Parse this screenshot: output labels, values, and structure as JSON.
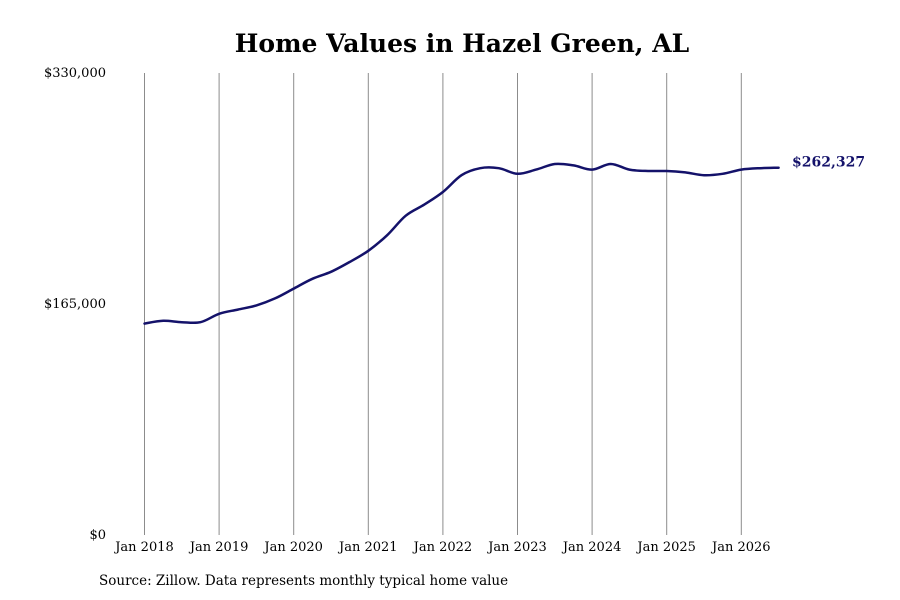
{
  "source": "Source: Zillow. Data represents monthly typical home value",
  "chart_data": {
    "type": "line",
    "title": "Home Values in Hazel Green, AL",
    "xlabel": "",
    "ylabel": "",
    "ylim": [
      0,
      330000
    ],
    "y_ticks": [
      {
        "value": 0,
        "label": "$0"
      },
      {
        "value": 165000,
        "label": "$165,000"
      },
      {
        "value": 330000,
        "label": "$330,000"
      }
    ],
    "x_ticks": [
      "Jan 2018",
      "Jan 2019",
      "Jan 2020",
      "Jan 2021",
      "Jan 2022",
      "Jan 2023",
      "Jan 2024",
      "Jan 2025",
      "Jan 2026"
    ],
    "grid": "vertical lines at x ticks",
    "end_label": "$262,327",
    "line_color": "#14126a",
    "series": [
      {
        "x": [
          "2018-01",
          "2018-04",
          "2018-07",
          "2018-10",
          "2019-01",
          "2019-04",
          "2019-07",
          "2019-10",
          "2020-01",
          "2020-04",
          "2020-07",
          "2020-10",
          "2021-01",
          "2021-04",
          "2021-07",
          "2021-10",
          "2022-01",
          "2022-04",
          "2022-07",
          "2022-10",
          "2023-01",
          "2023-04",
          "2023-07",
          "2023-10",
          "2024-01",
          "2024-04",
          "2024-07",
          "2024-10",
          "2025-01",
          "2025-04",
          "2025-07",
          "2025-10",
          "2026-01",
          "2026-04",
          "2026-07"
        ],
        "y": [
          151000,
          153000,
          152000,
          152000,
          158000,
          161000,
          164000,
          169000,
          176000,
          183000,
          188000,
          195000,
          203000,
          214000,
          228000,
          236000,
          245000,
          257000,
          262000,
          262000,
          258000,
          261000,
          265000,
          264000,
          261000,
          265000,
          261000,
          260000,
          260000,
          259000,
          257000,
          258000,
          261000,
          262000,
          262327
        ]
      }
    ]
  }
}
